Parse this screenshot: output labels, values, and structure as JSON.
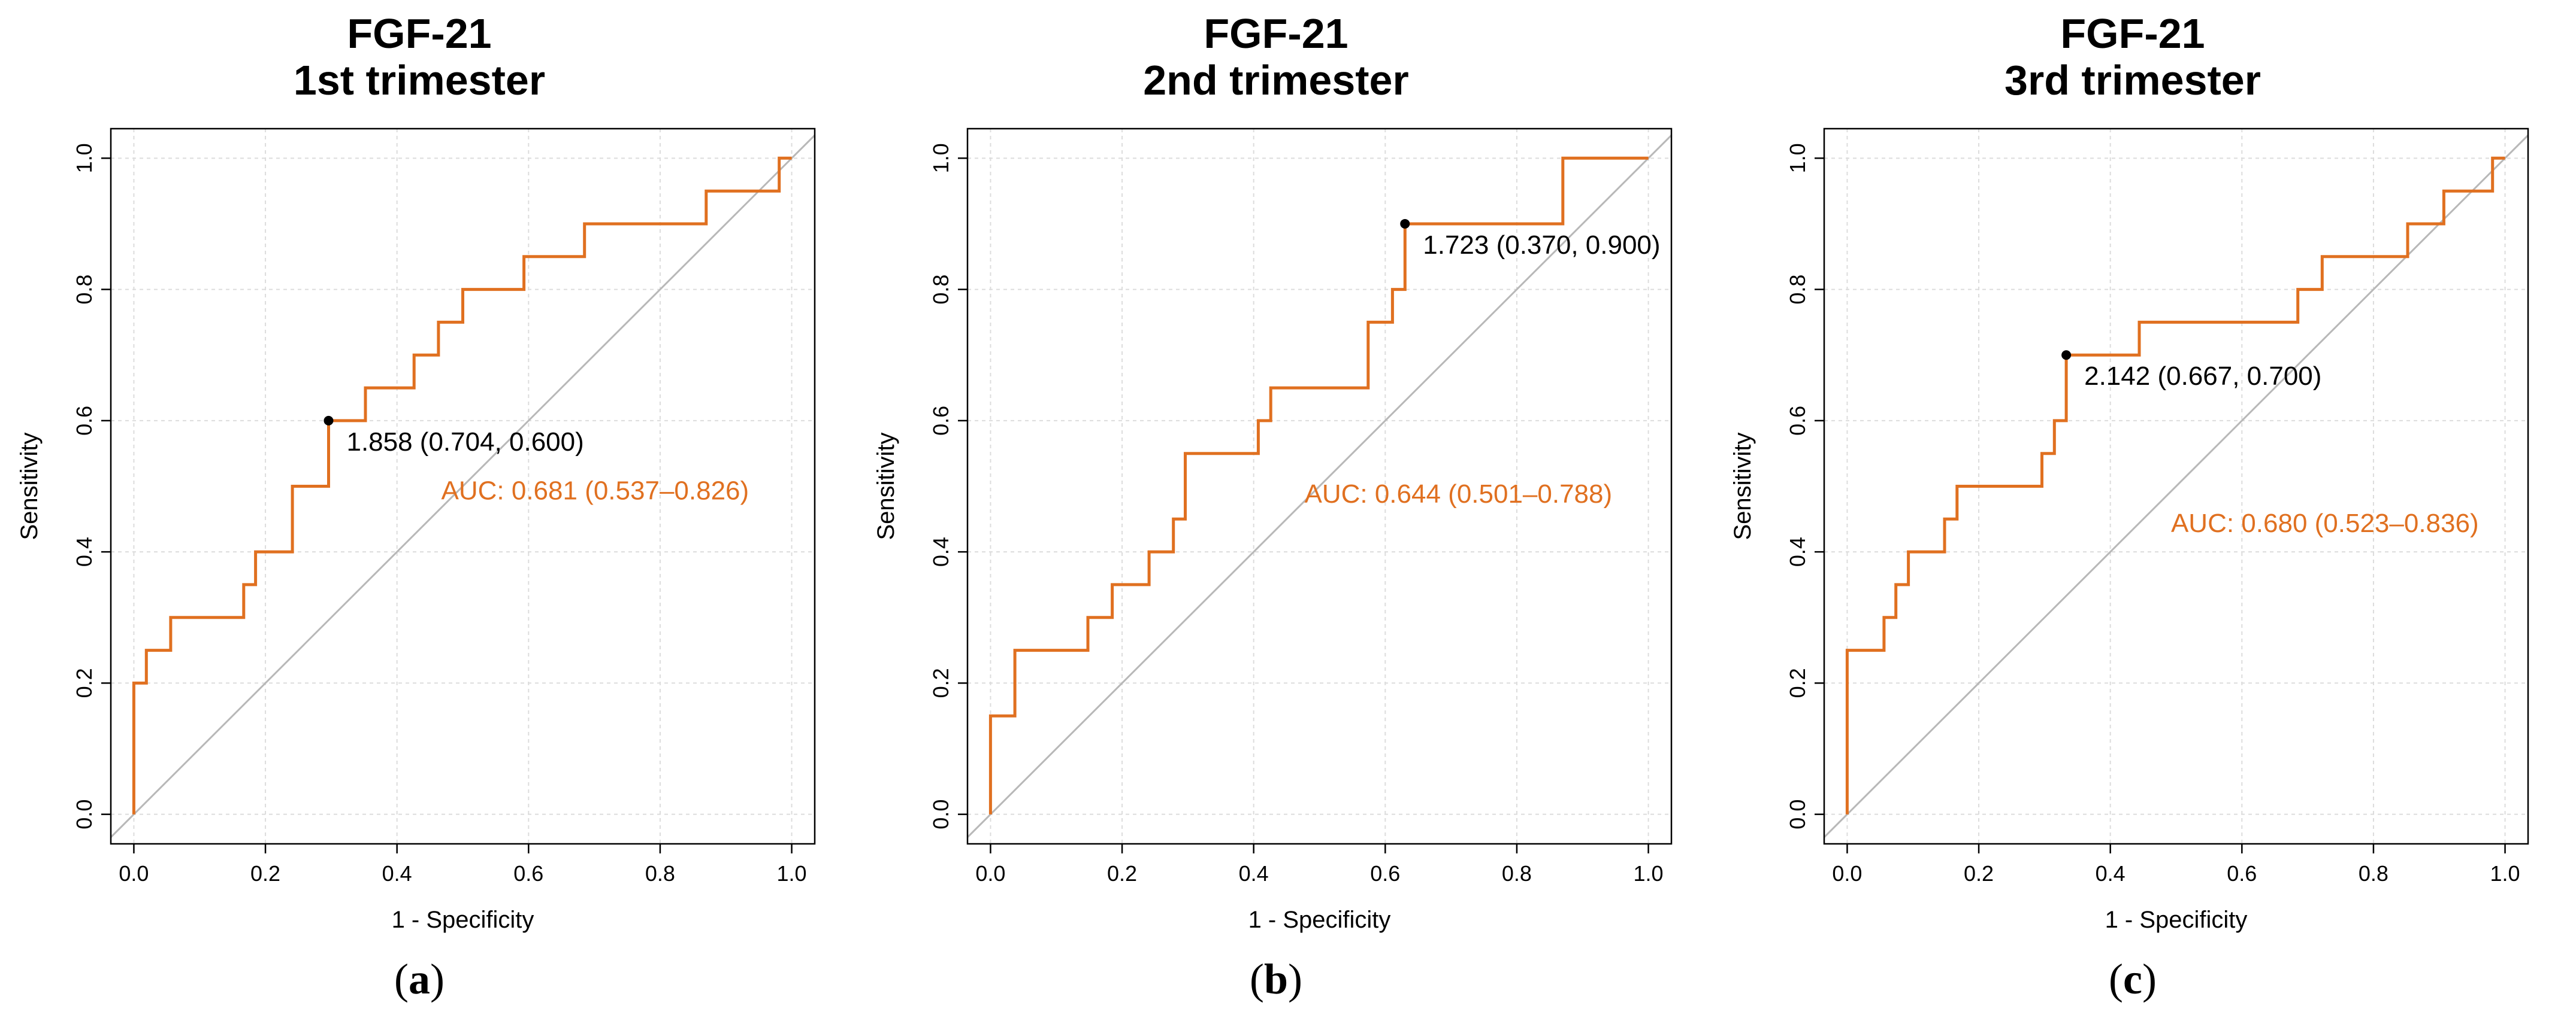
{
  "colors": {
    "roc": "#e07020",
    "diagonal": "#b8b8b8",
    "grid": "#dcdcdc",
    "axis": "#000000",
    "point": "#000000"
  },
  "chart_data": [
    {
      "type": "line",
      "panel_label": "a",
      "title": [
        "FGF-21",
        "1st trimester"
      ],
      "xlabel": "1 - Specificity",
      "ylabel": "Sensitivity",
      "xlim": [
        0,
        1
      ],
      "ylim": [
        0,
        1
      ],
      "xticks": [
        "0.0",
        "0.2",
        "0.4",
        "0.6",
        "0.8",
        "1.0"
      ],
      "yticks": [
        "0.0",
        "0.2",
        "0.4",
        "0.6",
        "0.8",
        "1.0"
      ],
      "grid": true,
      "auc_text": "AUC: 0.681 (0.537–0.826)",
      "cutoff": {
        "label": "1.858 (0.704, 0.600)",
        "x": 0.296,
        "y": 0.6
      },
      "roc": {
        "x": [
          0,
          0,
          0.019,
          0.019,
          0.056,
          0.056,
          0.167,
          0.167,
          0.185,
          0.185,
          0.241,
          0.241,
          0.296,
          0.296,
          0.352,
          0.352,
          0.426,
          0.426,
          0.463,
          0.463,
          0.5,
          0.5,
          0.593,
          0.593,
          0.685,
          0.685,
          0.87,
          0.87,
          0.981,
          0.981,
          1.0
        ],
        "y": [
          0,
          0.2,
          0.2,
          0.25,
          0.25,
          0.3,
          0.3,
          0.35,
          0.35,
          0.4,
          0.4,
          0.5,
          0.5,
          0.6,
          0.6,
          0.65,
          0.65,
          0.7,
          0.7,
          0.75,
          0.75,
          0.8,
          0.8,
          0.85,
          0.85,
          0.9,
          0.9,
          0.95,
          0.95,
          1.0,
          1.0
        ]
      }
    },
    {
      "type": "line",
      "panel_label": "b",
      "title": [
        "FGF-21",
        "2nd trimester"
      ],
      "xlabel": "1 - Specificity",
      "ylabel": "Sensitivity",
      "xlim": [
        0,
        1
      ],
      "ylim": [
        0,
        1
      ],
      "xticks": [
        "0.0",
        "0.2",
        "0.4",
        "0.6",
        "0.8",
        "1.0"
      ],
      "yticks": [
        "0.0",
        "0.2",
        "0.4",
        "0.6",
        "0.8",
        "1.0"
      ],
      "grid": true,
      "auc_text": "AUC: 0.644 (0.501–0.788)",
      "cutoff": {
        "label": "1.723 (0.370, 0.900)",
        "x": 0.63,
        "y": 0.9
      },
      "roc": {
        "x": [
          0,
          0,
          0.037,
          0.037,
          0.148,
          0.148,
          0.185,
          0.185,
          0.241,
          0.241,
          0.278,
          0.278,
          0.296,
          0.296,
          0.407,
          0.407,
          0.426,
          0.426,
          0.574,
          0.574,
          0.611,
          0.611,
          0.63,
          0.63,
          0.87,
          0.87,
          1.0
        ],
        "y": [
          0,
          0.15,
          0.15,
          0.25,
          0.25,
          0.3,
          0.3,
          0.35,
          0.35,
          0.4,
          0.4,
          0.45,
          0.45,
          0.55,
          0.55,
          0.6,
          0.6,
          0.65,
          0.65,
          0.75,
          0.75,
          0.8,
          0.8,
          0.9,
          0.9,
          1.0,
          1.0
        ]
      }
    },
    {
      "type": "line",
      "panel_label": "c",
      "title": [
        "FGF-21",
        "3rd trimester"
      ],
      "xlabel": "1 - Specificity",
      "ylabel": "Sensitivity",
      "xlim": [
        0,
        1
      ],
      "ylim": [
        0,
        1
      ],
      "xticks": [
        "0.0",
        "0.2",
        "0.4",
        "0.6",
        "0.8",
        "1.0"
      ],
      "yticks": [
        "0.0",
        "0.2",
        "0.4",
        "0.6",
        "0.8",
        "1.0"
      ],
      "grid": true,
      "auc_text": "AUC: 0.680 (0.523–0.836)",
      "cutoff": {
        "label": "2.142 (0.667, 0.700)",
        "x": 0.333,
        "y": 0.7
      },
      "roc": {
        "x": [
          0,
          0,
          0.056,
          0.056,
          0.074,
          0.074,
          0.093,
          0.093,
          0.148,
          0.148,
          0.167,
          0.167,
          0.296,
          0.296,
          0.315,
          0.315,
          0.333,
          0.333,
          0.444,
          0.444,
          0.685,
          0.685,
          0.722,
          0.722,
          0.852,
          0.852,
          0.907,
          0.907,
          0.981,
          0.981,
          1.0
        ],
        "y": [
          0,
          0.25,
          0.25,
          0.3,
          0.3,
          0.35,
          0.35,
          0.4,
          0.4,
          0.45,
          0.45,
          0.5,
          0.5,
          0.55,
          0.55,
          0.6,
          0.6,
          0.7,
          0.7,
          0.75,
          0.75,
          0.8,
          0.8,
          0.85,
          0.85,
          0.9,
          0.9,
          0.95,
          0.95,
          1.0,
          1.0
        ]
      }
    }
  ]
}
